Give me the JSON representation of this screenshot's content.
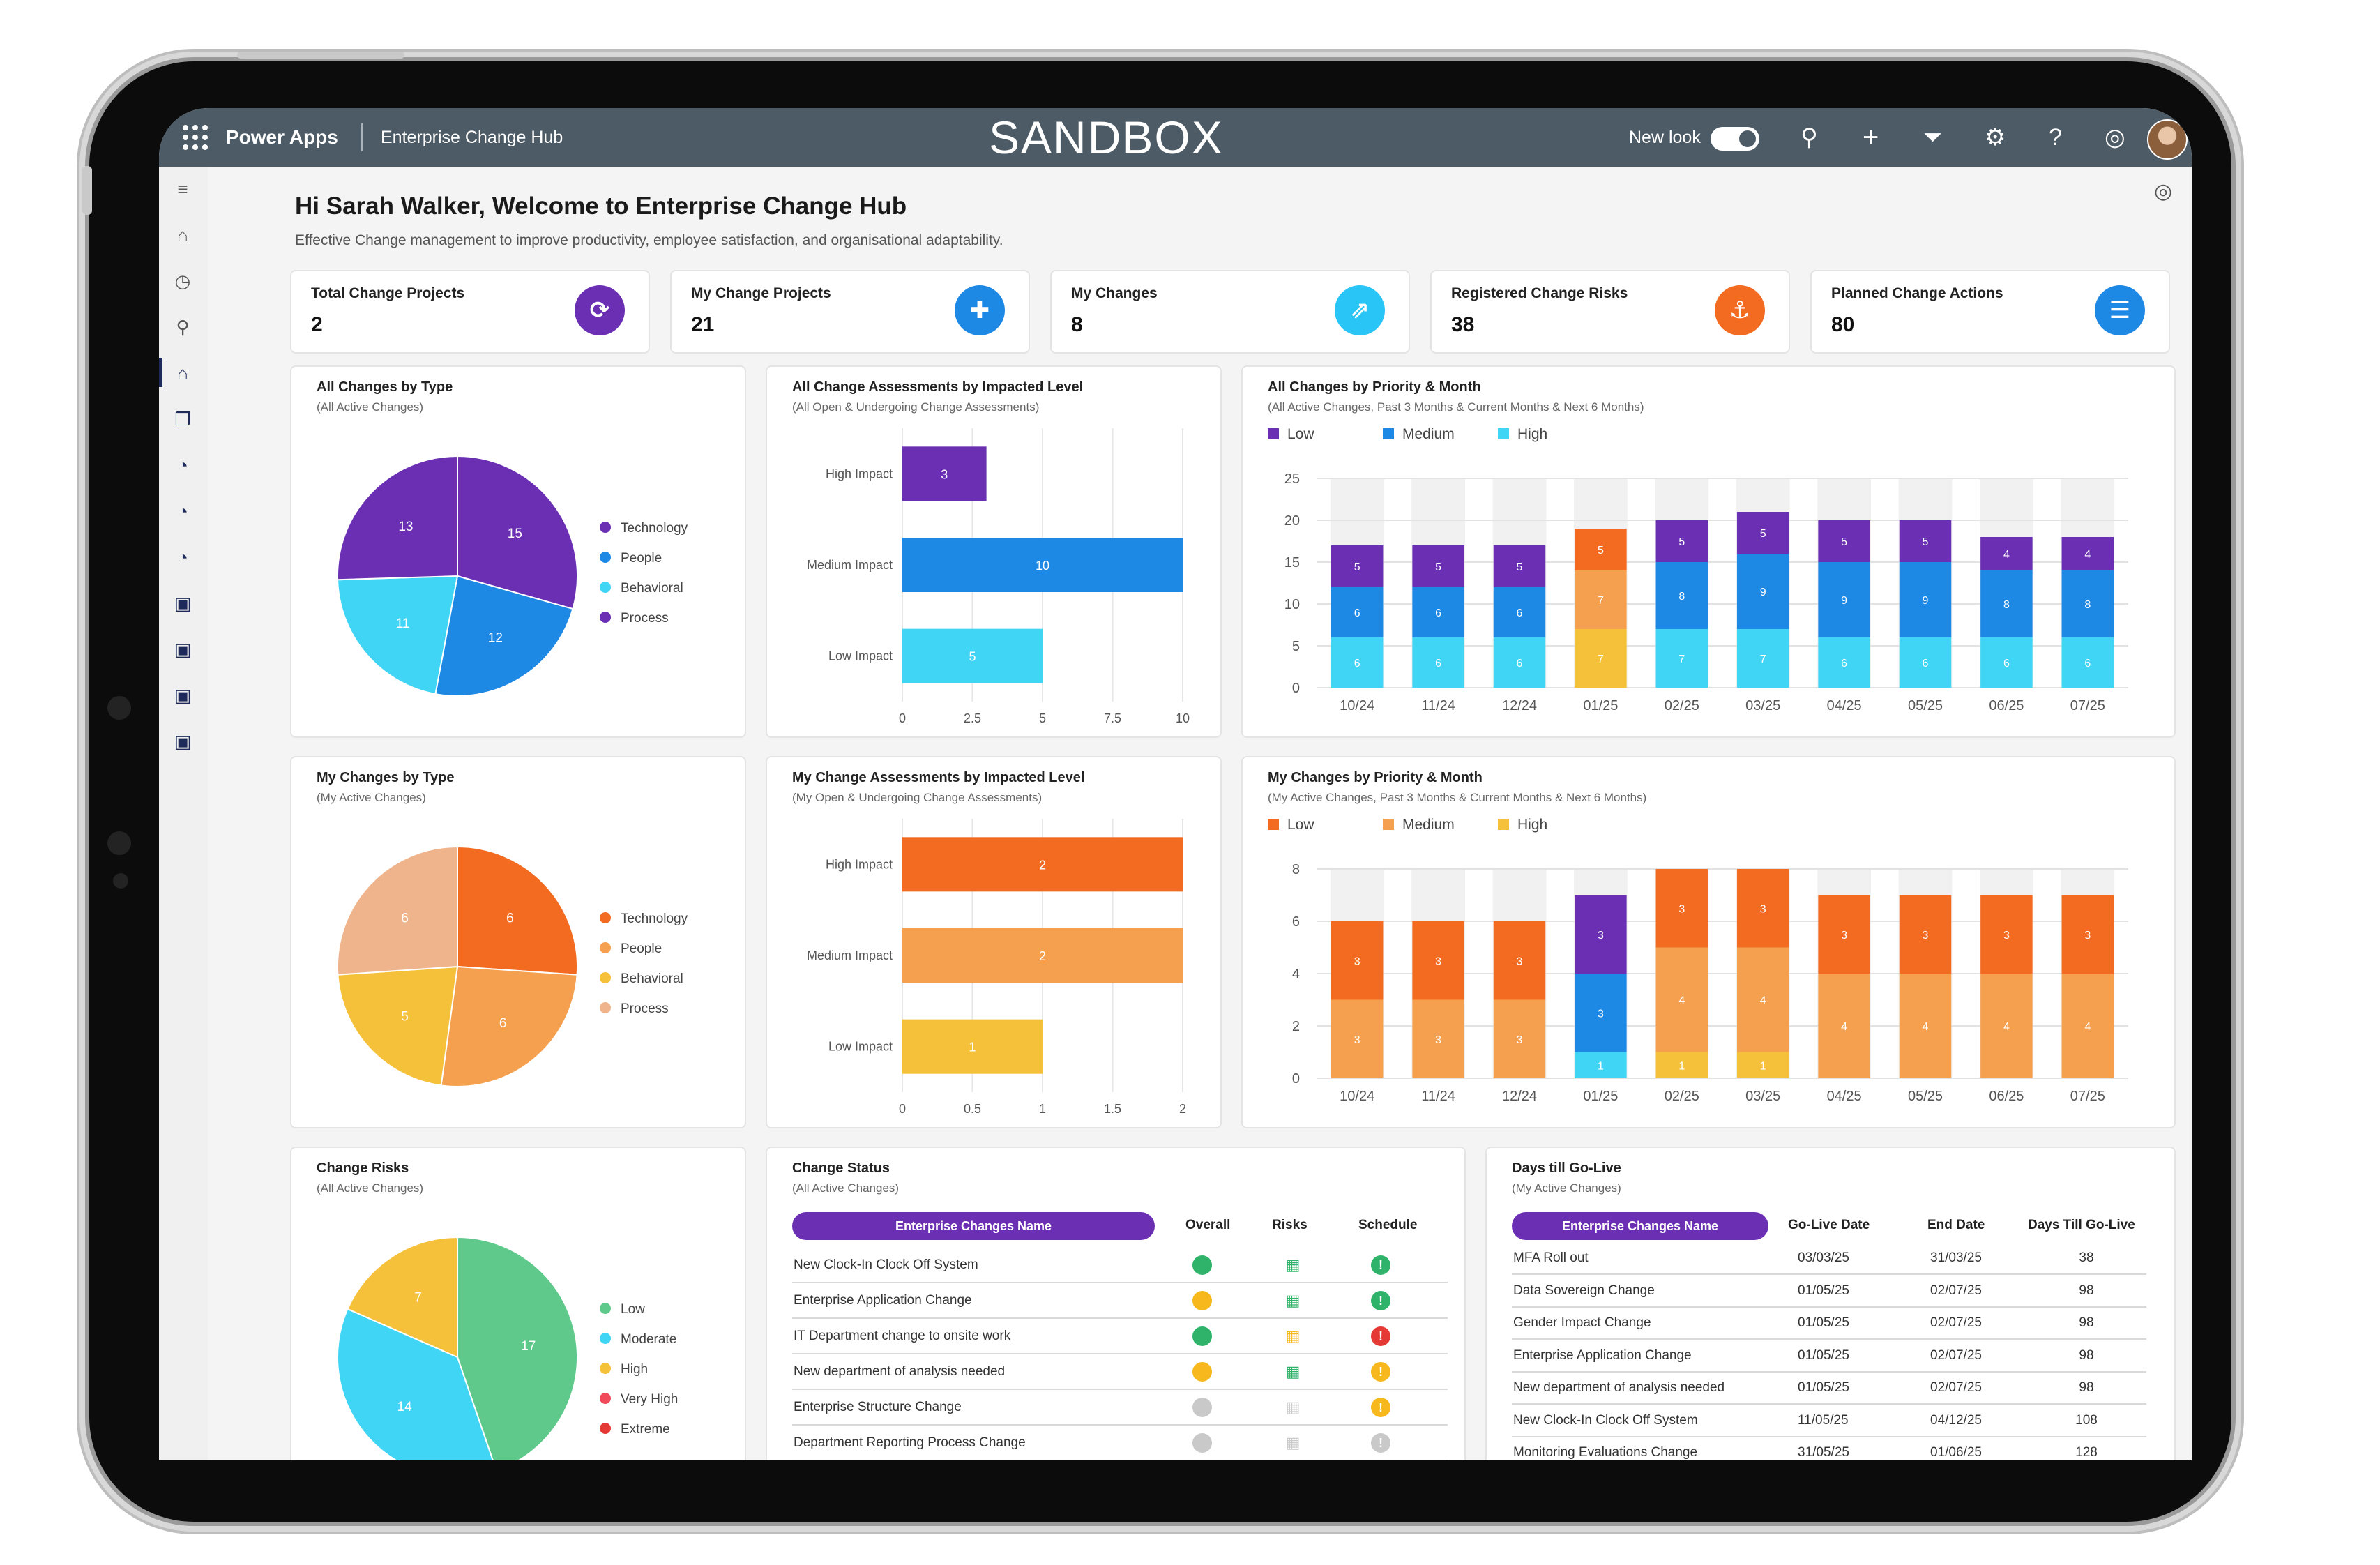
{
  "topbar": {
    "app_name": "Power Apps",
    "env_name": "Enterprise Change Hub",
    "banner": "SANDBOX",
    "new_look_label": "New look"
  },
  "header": {
    "title": "Hi Sarah Walker, Welcome to Enterprise Change Hub",
    "subtitle": "Effective Change management to improve productivity, employee satisfaction, and organisational adaptability."
  },
  "kpis": [
    {
      "label": "Total Change Projects",
      "value": "2",
      "color": "#6b2fb3",
      "icon": "refresh-icon"
    },
    {
      "label": "My Change Projects",
      "value": "21",
      "color": "#1e88e5",
      "icon": "puzzle-icon"
    },
    {
      "label": "My Changes",
      "value": "8",
      "color": "#29c5f6",
      "icon": "external-link-icon"
    },
    {
      "label": "Registered Change Risks",
      "value": "38",
      "color": "#f26b21",
      "icon": "anchor-icon"
    },
    {
      "label": "Planned Change Actions",
      "value": "80",
      "color": "#1e88e5",
      "icon": "list-icon"
    }
  ],
  "cards": {
    "all_type": {
      "title": "All Changes by Type",
      "subtitle": "(All Active Changes)"
    },
    "all_assess": {
      "title": "All Change Assessments by Impacted Level",
      "subtitle": "(All Open & Undergoing Change Assessments)"
    },
    "all_priority": {
      "title": "All Changes by Priority & Month",
      "subtitle": "(All Active Changes, Past 3 Months & Current Months & Next 6 Months)"
    },
    "my_type": {
      "title": "My Changes by Type",
      "subtitle": "(My Active Changes)"
    },
    "my_assess": {
      "title": "My Change Assessments by Impacted Level",
      "subtitle": "(My Open & Undergoing Change Assessments)"
    },
    "my_priority": {
      "title": "My Changes by Priority & Month",
      "subtitle": "(My Active Changes, Past 3 Months & Current Months & Next 6 Months)"
    },
    "risks": {
      "title": "Change Risks",
      "subtitle": "(All Active Changes)"
    },
    "status": {
      "title": "Change Status",
      "subtitle": "(All Active Changes)"
    },
    "golive": {
      "title": "Days till Go-Live",
      "subtitle": "(My Active Changes)"
    }
  },
  "chart_data": [
    {
      "id": "all_type",
      "type": "pie",
      "labels": [
        "Technology",
        "People",
        "Behavioral",
        "Process"
      ],
      "values": [
        15,
        12,
        11,
        13
      ],
      "colors": [
        "#6b2fb3",
        "#1e88e5",
        "#40d4f5",
        "#6b2fb3"
      ],
      "legend": "right"
    },
    {
      "id": "all_assess",
      "type": "bar",
      "orientation": "horizontal",
      "categories": [
        "High Impact",
        "Medium Impact",
        "Low Impact"
      ],
      "values": [
        3,
        10,
        5
      ],
      "colors": [
        "#6b2fb3",
        "#1e88e5",
        "#40d4f5"
      ],
      "xlim": [
        0,
        10
      ],
      "xticks": [
        "0",
        "2.5",
        "5",
        "7.5",
        "10"
      ]
    },
    {
      "id": "all_priority",
      "type": "bar",
      "stacked": true,
      "categories": [
        "10/24",
        "11/24",
        "12/24",
        "01/25",
        "02/25",
        "03/25",
        "04/25",
        "05/25",
        "06/25",
        "07/25"
      ],
      "series": [
        {
          "name": "Low",
          "color": "#6b2fb3",
          "values": [
            5,
            5,
            5,
            5,
            5,
            5,
            5,
            5,
            4,
            4
          ]
        },
        {
          "name": "Medium",
          "color": "#1e88e5",
          "values": [
            6,
            6,
            6,
            7,
            8,
            9,
            9,
            9,
            8,
            8
          ]
        },
        {
          "name": "High",
          "color": "#40d4f5",
          "values": [
            6,
            6,
            6,
            7,
            7,
            7,
            6,
            6,
            6,
            6
          ]
        }
      ],
      "alt_colors": {
        "01/25": [
          "#f26b21",
          "#f5a04f",
          "#f6c13a"
        ]
      },
      "ylim": [
        0,
        25
      ],
      "yticks": [
        "0",
        "5",
        "10",
        "15",
        "20",
        "25"
      ],
      "legend": "top-left"
    },
    {
      "id": "my_type",
      "type": "pie",
      "labels": [
        "Technology",
        "People",
        "Behavioral",
        "Process"
      ],
      "values": [
        6,
        6,
        5,
        6
      ],
      "colors": [
        "#f26b21",
        "#f5a04f",
        "#f6c13a",
        "#efb48c"
      ],
      "legend": "right"
    },
    {
      "id": "my_assess",
      "type": "bar",
      "orientation": "horizontal",
      "categories": [
        "High Impact",
        "Medium Impact",
        "Low Impact"
      ],
      "values": [
        2,
        2,
        1
      ],
      "colors": [
        "#f26b21",
        "#f5a04f",
        "#f6c13a"
      ],
      "xlim": [
        0,
        2
      ],
      "xticks": [
        "0",
        "0.5",
        "1",
        "1.5",
        "2"
      ]
    },
    {
      "id": "my_priority",
      "type": "bar",
      "stacked": true,
      "categories": [
        "10/24",
        "11/24",
        "12/24",
        "01/25",
        "02/25",
        "03/25",
        "04/25",
        "05/25",
        "06/25",
        "07/25"
      ],
      "series": [
        {
          "name": "Low",
          "color": "#f26b21",
          "values": [
            3,
            3,
            3,
            3,
            3,
            3,
            3,
            3,
            3,
            3
          ]
        },
        {
          "name": "Medium",
          "color": "#f5a04f",
          "values": [
            3,
            3,
            3,
            3,
            4,
            4,
            4,
            4,
            4,
            4
          ]
        },
        {
          "name": "High",
          "color": "#f6c13a",
          "values": [
            0,
            0,
            0,
            1,
            1,
            1,
            0,
            0,
            0,
            0
          ]
        }
      ],
      "alt_colors": {
        "01/25": [
          "#6b2fb3",
          "#1e88e5",
          "#40d4f5"
        ]
      },
      "ylim": [
        0,
        8
      ],
      "yticks": [
        "0",
        "2",
        "4",
        "6",
        "8"
      ],
      "legend": "top-left"
    },
    {
      "id": "risks",
      "type": "pie",
      "labels": [
        "Low",
        "Moderate",
        "High",
        "Very High",
        "Extreme"
      ],
      "values": [
        17,
        14,
        7,
        0,
        0
      ],
      "colors": [
        "#5ec98a",
        "#40d4f5",
        "#f6c13a",
        "#f04a5b",
        "#e53935"
      ],
      "legend": "right"
    }
  ],
  "status_table": {
    "headers": [
      "Enterprise Changes Name",
      "Overall",
      "Risks",
      "Schedule"
    ],
    "rows": [
      {
        "name": "New Clock-In Clock Off System",
        "overall": "#2fb36a",
        "risk": "#2fb36a",
        "schedule": "#2fb36a",
        "sched_glyph": "!"
      },
      {
        "name": "Enterprise Application Change",
        "overall": "#f6b81c",
        "risk": "#2fb36a",
        "schedule": "#2fb36a",
        "sched_glyph": "!"
      },
      {
        "name": "IT Department change to onsite work",
        "overall": "#2fb36a",
        "risk": "#f6b81c",
        "schedule": "#e53935",
        "sched_glyph": "!"
      },
      {
        "name": "New department of analysis needed",
        "overall": "#f6b81c",
        "risk": "#2fb36a",
        "schedule": "#f6b81c",
        "sched_glyph": "!"
      },
      {
        "name": "Enterprise Structure Change",
        "overall": "#c9c9c9",
        "risk": "#c9c9c9",
        "schedule": "#f6b81c",
        "sched_glyph": "!"
      },
      {
        "name": "Department Reporting Process Change",
        "overall": "#c9c9c9",
        "risk": "#c9c9c9",
        "schedule": "#c9c9c9",
        "sched_glyph": "!"
      }
    ]
  },
  "golive_table": {
    "headers": [
      "Enterprise Changes Name",
      "Go-Live Date",
      "End Date",
      "Days Till Go-Live"
    ],
    "rows": [
      [
        "MFA Roll out",
        "03/03/25",
        "31/03/25",
        "38"
      ],
      [
        "Data Sovereign Change",
        "01/05/25",
        "02/07/25",
        "98"
      ],
      [
        "Gender Impact Change",
        "01/05/25",
        "02/07/25",
        "98"
      ],
      [
        "Enterprise Application Change",
        "01/05/25",
        "02/07/25",
        "98"
      ],
      [
        "New department of analysis needed",
        "01/05/25",
        "02/07/25",
        "98"
      ],
      [
        "New Clock-In Clock Off System",
        "11/05/25",
        "04/12/25",
        "108"
      ],
      [
        "Monitoring Evaluations Change",
        "31/05/25",
        "01/06/25",
        "128"
      ]
    ]
  }
}
